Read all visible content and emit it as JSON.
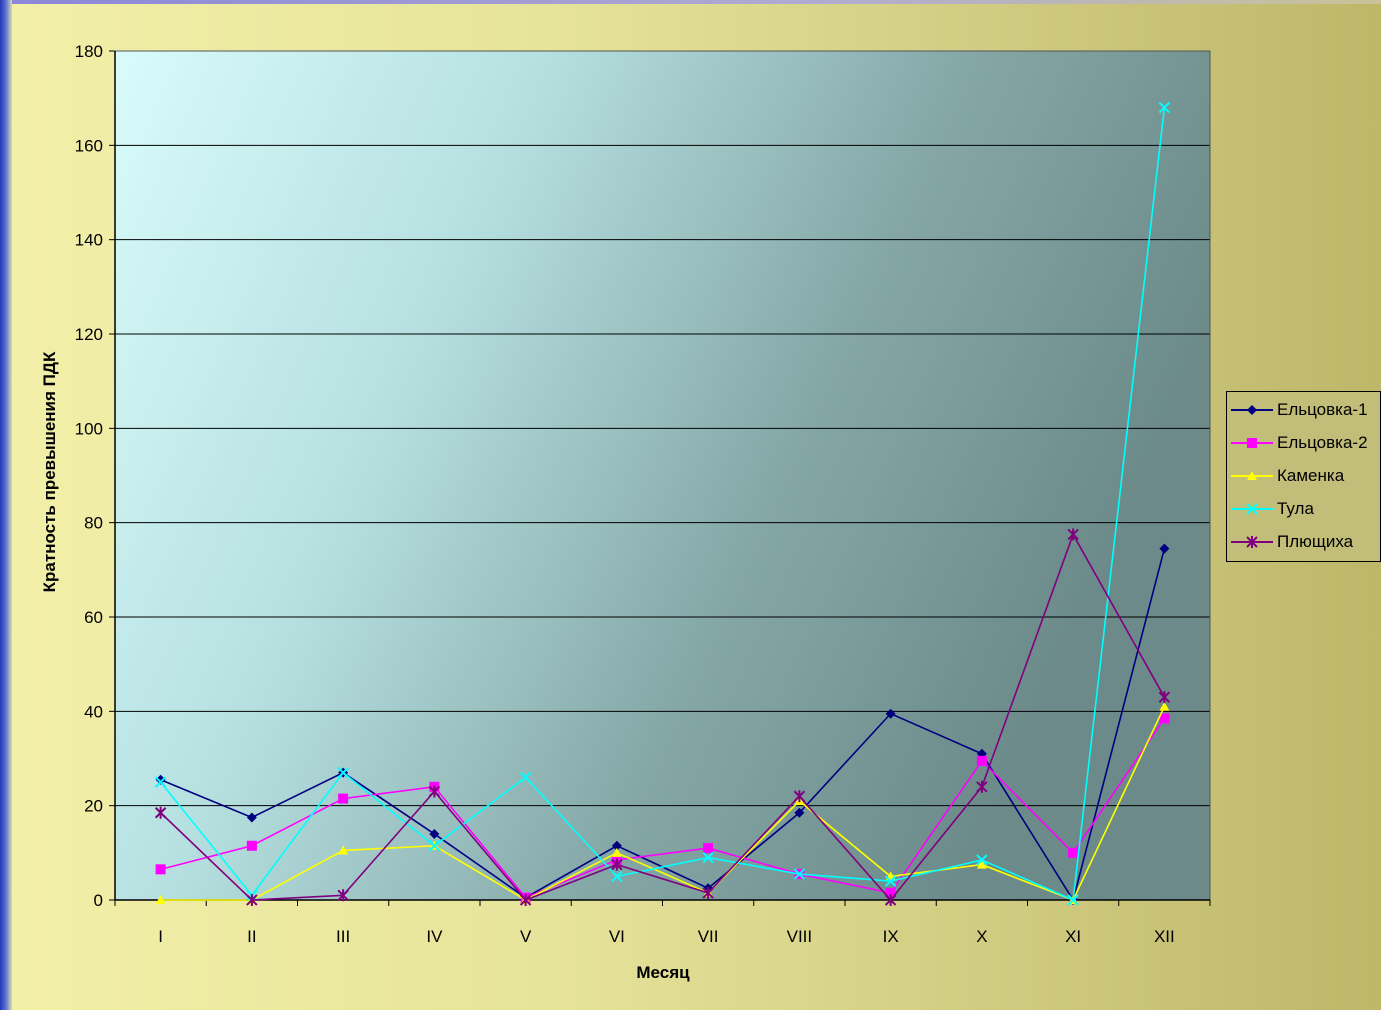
{
  "chart_data": {
    "type": "line",
    "title": "",
    "xlabel": "Месяц",
    "ylabel": "Кратность превышения ПДК",
    "categories": [
      "I",
      "II",
      "III",
      "IV",
      "V",
      "VI",
      "VII",
      "VIII",
      "IX",
      "X",
      "XI",
      "XII"
    ],
    "ylim": [
      0,
      180
    ],
    "yticks": [
      0,
      20,
      40,
      60,
      80,
      100,
      120,
      140,
      160,
      180
    ],
    "grid": true,
    "legend_position": "right",
    "series": [
      {
        "name": "Ельцовка-1",
        "color": "#000080",
        "marker": "diamond",
        "values": [
          25.5,
          17.5,
          27,
          14,
          0.5,
          11.5,
          2.5,
          18.5,
          39.5,
          31,
          0,
          74.5
        ]
      },
      {
        "name": "Ельцовка-2",
        "color": "#ff00ff",
        "marker": "square",
        "values": [
          6.5,
          11.5,
          21.5,
          24,
          0.5,
          8.5,
          11,
          5.5,
          1.5,
          29.5,
          10,
          38.5
        ]
      },
      {
        "name": "Каменка",
        "color": "#ffff00",
        "marker": "triangle",
        "values": [
          0,
          0,
          10.5,
          11.5,
          0,
          10,
          1.5,
          21,
          5,
          7.5,
          0,
          41
        ]
      },
      {
        "name": "Тула",
        "color": "#00ffff",
        "marker": "x",
        "values": [
          25,
          1,
          27,
          11.5,
          26,
          5,
          9,
          5.5,
          4,
          8.5,
          0,
          168
        ]
      },
      {
        "name": "Плющиха",
        "color": "#800080",
        "marker": "star",
        "values": [
          18.5,
          0,
          1,
          23,
          0,
          7.5,
          1.5,
          22,
          0,
          24,
          77.5,
          43
        ]
      }
    ]
  }
}
